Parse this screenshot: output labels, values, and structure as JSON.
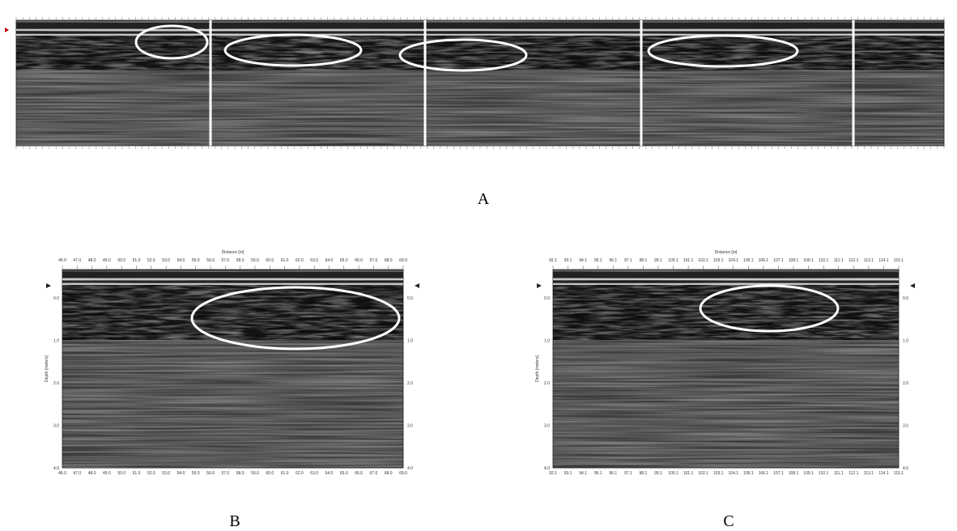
{
  "figure": {
    "panel_a": {
      "label": "A"
    },
    "panel_b": {
      "label": "B",
      "x_title": "Distance [m]",
      "y_title": "Depth [meters]",
      "x_ticks": [
        "46.0",
        "47.0",
        "48.0",
        "49.0",
        "50.0",
        "51.0",
        "52.0",
        "53.0",
        "54.0",
        "55.0",
        "56.0",
        "57.0",
        "58.0",
        "59.0",
        "60.0",
        "61.0",
        "62.0",
        "63.0",
        "64.0",
        "65.0",
        "66.0",
        "67.0",
        "68.0",
        "69.0"
      ],
      "y_ticks": [
        "0.0",
        "1.0",
        "2.0",
        "3.0",
        "4.0"
      ]
    },
    "panel_c": {
      "label": "C",
      "x_title": "Distance [m]",
      "y_title": "Depth [meters]",
      "x_ticks": [
        "92.1",
        "93.1",
        "94.1",
        "95.1",
        "96.1",
        "97.1",
        "98.1",
        "99.1",
        "100.1",
        "101.1",
        "102.1",
        "103.1",
        "104.1",
        "105.1",
        "106.1",
        "107.1",
        "108.1",
        "109.1",
        "110.1",
        "111.1",
        "112.1",
        "113.1",
        "114.1",
        "115.1"
      ],
      "y_ticks": [
        "0.0",
        "1.0",
        "2.0",
        "3.0",
        "4.0"
      ]
    }
  }
}
